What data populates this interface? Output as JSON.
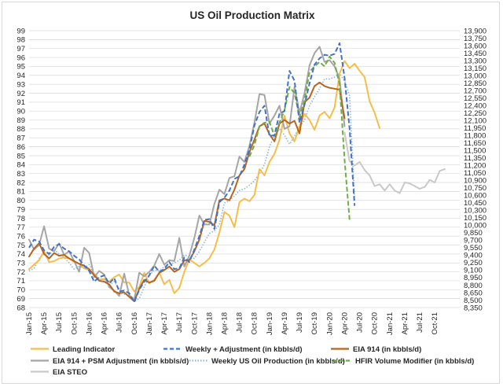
{
  "chart_data": {
    "type": "line",
    "title": "US Oil Production Matrix",
    "y_left": {
      "min": 68,
      "max": 99,
      "step": 1
    },
    "y_right": {
      "min": 8350,
      "max": 13900,
      "step": 150
    },
    "x_tick_labels": [
      "Jan-15",
      "Apr-15",
      "Jul-15",
      "Oct-15",
      "Jan-16",
      "Apr-16",
      "Jul-16",
      "Oct-16",
      "Jan-17",
      "Apr-17",
      "Jul-17",
      "Oct-17",
      "Jan-18",
      "Apr-18",
      "Jul-18",
      "Oct-18",
      "Jan-19",
      "Apr-19",
      "Jul-19",
      "Oct-19",
      "Jan-20",
      "Apr-20",
      "Jul-20",
      "Oct-20",
      "Jan-21",
      "Apr-21",
      "Jul-21",
      "Oct-21"
    ],
    "legend_placement": "bottom",
    "series": [
      {
        "name": "Leading Indicator",
        "color": "#f5be4b",
        "dash": "solid",
        "values": [
          72.3,
          72.8,
          73.3,
          74.3,
          73.1,
          73.2,
          73.5,
          73.6,
          73.5,
          73.1,
          72.9,
          72.4,
          72.2,
          71.8,
          71.1,
          71.2,
          70.9,
          71.4,
          71.7,
          70.8,
          70.8,
          69.8,
          70.3,
          71.9,
          70.7,
          71.1,
          71.9,
          70.6,
          71.1,
          69.6,
          70.2,
          72.0,
          73.4,
          73.0,
          72.6,
          73.0,
          73.5,
          74.5,
          76.4,
          78.7,
          78.3,
          77.0,
          79.8,
          80.2,
          79.9,
          80.6,
          83.5,
          82.8,
          84.3,
          85.2,
          86.8,
          89.5,
          87.5,
          86.6,
          88.3,
          89.7,
          89.0,
          87.9,
          89.5,
          89.9,
          89.2,
          90.4,
          94.2,
          95.6,
          94.8,
          95.3,
          94.5,
          93.8,
          91.1,
          89.8,
          88.1
        ]
      },
      {
        "name": "Weekly + Adjustment (in kbbls/d)",
        "color": "#4472c4",
        "dash": "dash",
        "values": [
          74.7,
          75.6,
          75.4,
          74.4,
          74.0,
          74.8,
          75.1,
          74.6,
          74.3,
          73.8,
          73.4,
          72.7,
          72.1,
          70.9,
          71.4,
          71.6,
          70.7,
          71.3,
          69.8,
          69.9,
          69.6,
          68.6,
          70.0,
          70.9,
          71.6,
          72.7,
          72.0,
          72.3,
          73.1,
          72.3,
          72.4,
          73.6,
          73.1,
          74.5,
          76.0,
          77.8,
          77.9,
          76.8,
          79.8,
          80.3,
          81.1,
          82.4,
          82.7,
          84.0,
          85.7,
          88.4,
          89.9,
          90.6,
          87.2,
          87.3,
          89.7,
          90.0,
          94.5,
          93.4,
          88.7,
          90.7,
          93.1,
          95.2,
          95.9,
          96.3,
          96.2,
          96.4,
          97.6,
          93.7,
          88.0,
          79.4
        ]
      },
      {
        "name": "EIA 914 (in kbbls/d)",
        "color": "#b5651d",
        "dash": "solid",
        "values": [
          73.7,
          74.6,
          75.2,
          74.0,
          73.5,
          74.1,
          73.8,
          73.9,
          73.5,
          73.2,
          72.9,
          72.7,
          72.3,
          71.6,
          71.0,
          70.9,
          70.6,
          69.8,
          69.6,
          69.7,
          69.2,
          68.7,
          70.1,
          71.1,
          70.8,
          71.0,
          71.9,
          72.2,
          72.6,
          72.0,
          72.3,
          73.3,
          73.3,
          74.3,
          75.6,
          77.7,
          77.6,
          77.2,
          80.0,
          80.2,
          80.0,
          81.2,
          82.8,
          83.5,
          85.4,
          86.8,
          88.3,
          88.6,
          87.4,
          86.6,
          88.6,
          89.0,
          88.6,
          88.9,
          87.5,
          91.0,
          91.5,
          92.8,
          93.2,
          92.8,
          92.6,
          92.5,
          92.4,
          89.2
        ]
      },
      {
        "name": "EIA 914 + PSM Adjustment (in kbbls/d)",
        "color": "#a5a5a5",
        "dash": "solid",
        "values": [
          75.6,
          74.5,
          75.0,
          77.1,
          74.6,
          74.3,
          75.2,
          73.9,
          74.3,
          73.2,
          72.0,
          74.7,
          74.1,
          71.4,
          72.1,
          71.7,
          70.3,
          69.9,
          69.3,
          71.8,
          69.4,
          68.9,
          71.9,
          71.5,
          72.0,
          72.7,
          74.0,
          72.8,
          73.3,
          73.2,
          75.8,
          72.6,
          73.8,
          75.8,
          78.3,
          77.3,
          77.3,
          79.6,
          81.2,
          80.7,
          82.5,
          82.7,
          84.9,
          84.3,
          86.1,
          88.7,
          91.9,
          91.8,
          88.6,
          89.5,
          90.6,
          88.0,
          88.3,
          92.7,
          89.8,
          92.0,
          95.1,
          96.5,
          97.2,
          95.5,
          95.7,
          95.0,
          93.6,
          88.3
        ]
      },
      {
        "name": "Weekly US Oil Production (in kbbls/d)",
        "color": "#8db4e2",
        "dash": "dot",
        "values": [
          72.1,
          72.4,
          73.5,
          74.0,
          73.9,
          74.5,
          74.0,
          73.6,
          73.0,
          72.3,
          72.6,
          72.5,
          72.8,
          71.8,
          71.3,
          71.1,
          70.5,
          70.9,
          70.1,
          69.5,
          69.3,
          68.7,
          69.0,
          70.3,
          71.6,
          72.2,
          72.1,
          72.6,
          72.9,
          73.0,
          73.3,
          73.9,
          73.7,
          73.5,
          74.3,
          75.3,
          76.3,
          76.6,
          77.3,
          79.7,
          80.0,
          80.5,
          81.1,
          81.3,
          81.7,
          82.2,
          83.0,
          84.0,
          86.0,
          87.3,
          88.0,
          87.3,
          86.3,
          87.2,
          88.2,
          89.0,
          90.6,
          91.6,
          92.5,
          93.6,
          93.6,
          93.8,
          94.2,
          93.4,
          91.7,
          80.0
        ]
      },
      {
        "name": "HFIR Volume Modifier (in kbbls/d)",
        "color": "#70ad47",
        "dash": "dash",
        "values": [
          null,
          null,
          null,
          null,
          null,
          null,
          null,
          null,
          null,
          null,
          null,
          null,
          null,
          null,
          null,
          null,
          null,
          null,
          null,
          null,
          null,
          null,
          null,
          null,
          null,
          null,
          null,
          null,
          null,
          null,
          null,
          null,
          null,
          null,
          null,
          null,
          null,
          null,
          null,
          null,
          null,
          null,
          null,
          null,
          84.9,
          86.2,
          88.3,
          88.7,
          88.8,
          87.2,
          88.7,
          90.1,
          92.7,
          92.0,
          89.3,
          91.2,
          94.4,
          95.0,
          95.5,
          95.0,
          96.1,
          95.4,
          93.0,
          84.5,
          77.8
        ]
      },
      {
        "name": "EIA STEO",
        "color": "#c9c9c9",
        "dash": "solid",
        "values": [
          null,
          null,
          null,
          null,
          null,
          null,
          null,
          null,
          null,
          null,
          null,
          null,
          null,
          null,
          null,
          null,
          null,
          null,
          null,
          null,
          null,
          null,
          null,
          null,
          null,
          null,
          null,
          null,
          null,
          null,
          null,
          null,
          null,
          null,
          null,
          null,
          null,
          null,
          null,
          null,
          null,
          null,
          null,
          null,
          null,
          null,
          null,
          null,
          null,
          null,
          null,
          null,
          null,
          null,
          null,
          null,
          null,
          null,
          null,
          null,
          null,
          null,
          null,
          87.6,
          84.4,
          83.9,
          84.3,
          83.4,
          82.8,
          81.6,
          81.8,
          81.1,
          81.8,
          81.1,
          80.8,
          82.0,
          81.9,
          81.6,
          81.3,
          81.5,
          82.3,
          82.0,
          83.3,
          83.5
        ]
      }
    ]
  }
}
